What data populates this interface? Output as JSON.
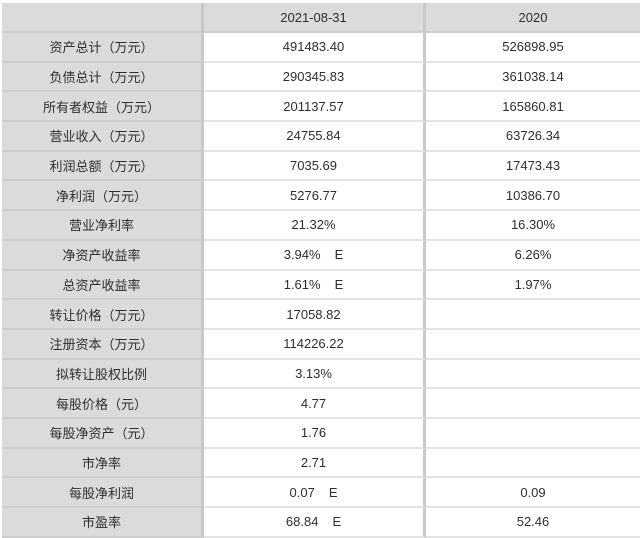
{
  "chart_data": {
    "type": "table",
    "title": "",
    "columns": [
      "",
      "2021-08-31",
      "2020"
    ],
    "rows": [
      {
        "label": "资产总计（万元）",
        "v2021": "491483.40",
        "flag2021": "",
        "v2020": "526898.95"
      },
      {
        "label": "负债总计（万元）",
        "v2021": "290345.83",
        "flag2021": "",
        "v2020": "361038.14"
      },
      {
        "label": "所有者权益（万元）",
        "v2021": "201137.57",
        "flag2021": "",
        "v2020": "165860.81"
      },
      {
        "label": "营业收入（万元）",
        "v2021": "24755.84",
        "flag2021": "",
        "v2020": "63726.34"
      },
      {
        "label": "利润总额（万元）",
        "v2021": "7035.69",
        "flag2021": "",
        "v2020": "17473.43"
      },
      {
        "label": "净利润（万元）",
        "v2021": "5276.77",
        "flag2021": "",
        "v2020": "10386.70"
      },
      {
        "label": "营业净利率",
        "v2021": "21.32%",
        "flag2021": "",
        "v2020": "16.30%"
      },
      {
        "label": "净资产收益率",
        "v2021": "3.94%",
        "flag2021": "E",
        "v2020": "6.26%"
      },
      {
        "label": "总资产收益率",
        "v2021": "1.61%",
        "flag2021": "E",
        "v2020": "1.97%"
      },
      {
        "label": "转让价格（万元）",
        "v2021": "17058.82",
        "flag2021": "",
        "v2020": ""
      },
      {
        "label": "注册资本（万元）",
        "v2021": "114226.22",
        "flag2021": "",
        "v2020": ""
      },
      {
        "label": "拟转让股权比例",
        "v2021": "3.13%",
        "flag2021": "",
        "v2020": ""
      },
      {
        "label": "每股价格（元）",
        "v2021": "4.77",
        "flag2021": "",
        "v2020": ""
      },
      {
        "label": "每股净资产（元）",
        "v2021": "1.76",
        "flag2021": "",
        "v2020": ""
      },
      {
        "label": "市净率",
        "v2021": "2.71",
        "flag2021": "",
        "v2020": ""
      },
      {
        "label": "每股净利润",
        "v2021": "0.07",
        "flag2021": "E",
        "v2020": "0.09"
      },
      {
        "label": "市盈率",
        "v2021": "68.84",
        "flag2021": "E",
        "v2020": "52.46"
      }
    ],
    "layout": {
      "grid": true,
      "header_row": true,
      "value_alignment": "center"
    }
  },
  "colors": {
    "header_fill": "#dbdbdb",
    "label_column_fill": "#dbdbdb",
    "cell_fill": "#ffffff",
    "column_divider": "#c8c8c8",
    "row_border": "#e3e3e3",
    "label_row_border": "#cdcdcd",
    "text": "#2e2e2e"
  }
}
